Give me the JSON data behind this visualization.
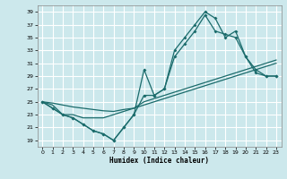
{
  "xlabel": "Humidex (Indice chaleur)",
  "bg_color": "#cce8ec",
  "grid_color": "#ffffff",
  "line_color": "#1a6b6b",
  "xlim": [
    -0.5,
    23.5
  ],
  "ylim": [
    18,
    40
  ],
  "yticks": [
    19,
    21,
    23,
    25,
    27,
    29,
    31,
    33,
    35,
    37,
    39
  ],
  "xticks": [
    0,
    1,
    2,
    3,
    4,
    5,
    6,
    7,
    8,
    9,
    10,
    11,
    12,
    13,
    14,
    15,
    16,
    17,
    18,
    19,
    20,
    21,
    22,
    23
  ],
  "line_upper1": {
    "x": [
      0,
      1,
      2,
      3,
      4,
      5,
      6,
      7,
      8,
      9,
      10,
      11,
      12,
      13,
      14,
      15,
      16,
      17,
      18,
      19,
      20,
      21,
      22,
      23
    ],
    "y": [
      25,
      24,
      23,
      22.5,
      21.5,
      20.5,
      20,
      19,
      21,
      23,
      30,
      26,
      27,
      33,
      35,
      37,
      39,
      38,
      35,
      36,
      32,
      30,
      29,
      29
    ]
  },
  "line_upper2": {
    "x": [
      0,
      1,
      2,
      3,
      4,
      5,
      6,
      7,
      8,
      9,
      10,
      11,
      12,
      13,
      14,
      15,
      16,
      17,
      18,
      19,
      20,
      21,
      22,
      23
    ],
    "y": [
      25,
      24,
      23,
      22.5,
      21.5,
      20.5,
      20,
      19,
      21,
      23,
      26,
      26,
      27,
      32,
      34,
      36,
      38.5,
      36,
      35.5,
      35,
      32,
      29.5,
      29,
      29
    ]
  },
  "line_lower1": {
    "x": [
      0,
      1,
      2,
      3,
      4,
      5,
      6,
      7,
      8,
      9,
      10,
      11,
      12,
      13,
      14,
      15,
      16,
      17,
      18,
      19,
      20,
      21,
      22,
      23
    ],
    "y": [
      25,
      24.8,
      24.5,
      24.2,
      24,
      23.8,
      23.6,
      23.5,
      23.8,
      24,
      24.5,
      25,
      25.5,
      26,
      26.5,
      27,
      27.5,
      28,
      28.5,
      29,
      29.5,
      30,
      30.5,
      31
    ]
  },
  "line_lower2": {
    "x": [
      0,
      1,
      2,
      3,
      4,
      5,
      6,
      7,
      8,
      9,
      10,
      11,
      12,
      13,
      14,
      15,
      16,
      17,
      18,
      19,
      20,
      21,
      22,
      23
    ],
    "y": [
      25,
      24.5,
      23,
      23,
      22.5,
      22.5,
      22.5,
      23,
      23.5,
      24,
      25,
      25.5,
      26,
      26.5,
      27,
      27.5,
      28,
      28.5,
      29,
      29.5,
      30,
      30.5,
      31,
      31.5
    ]
  }
}
